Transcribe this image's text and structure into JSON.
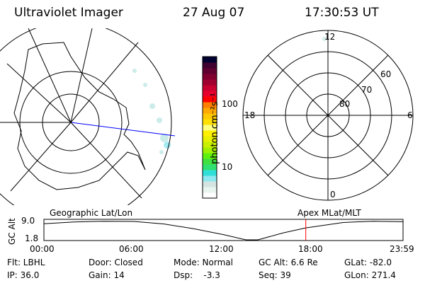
{
  "header": {
    "instrument": "Ultraviolet Imager",
    "date": "27 Aug 07",
    "time": "17:30:53 UT"
  },
  "colorbar": {
    "unit_label": "photon cm⁻²s⁻¹",
    "tick_labels": [
      "100",
      "10"
    ],
    "colors": [
      "#ffffff",
      "#e8f4ee",
      "#d4e4e0",
      "#8ee8f0",
      "#30e0d8",
      "#30e070",
      "#40e040",
      "#60f010",
      "#a0f000",
      "#c8f000",
      "#e8f000",
      "#fff000",
      "#ffff80",
      "#ffe000",
      "#ffc800",
      "#ffa800",
      "#ff8000",
      "#ff0000",
      "#e8002c",
      "#c80030",
      "#a00030",
      "#800030",
      "#600030",
      "#400030",
      "#000030"
    ]
  },
  "polar_plot": {
    "ring_labels": [
      "80",
      "70",
      "60"
    ],
    "mlt_labels": {
      "top": "12",
      "left": "18",
      "right": "6",
      "bottom": "0"
    }
  },
  "orbit_plot": {
    "left_label": "Geographic Lat/Lon",
    "right_label": "Apex MLat/MLT",
    "ylabel": "GC Alt",
    "ytick_labels": [
      "9.0",
      "1.8"
    ],
    "xtick_labels": [
      "00:00",
      "06:00",
      "12:00",
      "18:00",
      "23:59"
    ],
    "current_time_hours": 17.5,
    "marker_color": "#ff0000",
    "altitude_curve": [
      [
        0,
        8.3
      ],
      [
        2,
        9.0
      ],
      [
        4,
        9.3
      ],
      [
        6,
        9.2
      ],
      [
        8,
        8.2
      ],
      [
        10,
        6.3
      ],
      [
        12,
        3.9
      ],
      [
        13.5,
        1.8
      ],
      [
        14.3,
        1.8
      ],
      [
        16,
        4.6
      ],
      [
        17.5,
        6.6
      ],
      [
        20,
        8.8
      ],
      [
        22,
        9.3
      ],
      [
        24,
        9.1
      ]
    ]
  },
  "status": {
    "flt": "Flt: LBHL",
    "ip": "IP: 36.0",
    "door": "Door: Closed",
    "gain": "Gain: 14",
    "mode": "Mode: Normal",
    "dsp": "Dsp:    -3.3",
    "gcalt": "GC Alt: 6.6 Re",
    "seq": "Seq: 39",
    "glat": "GLat: -82.0",
    "glon": "GLon: 271.4"
  }
}
